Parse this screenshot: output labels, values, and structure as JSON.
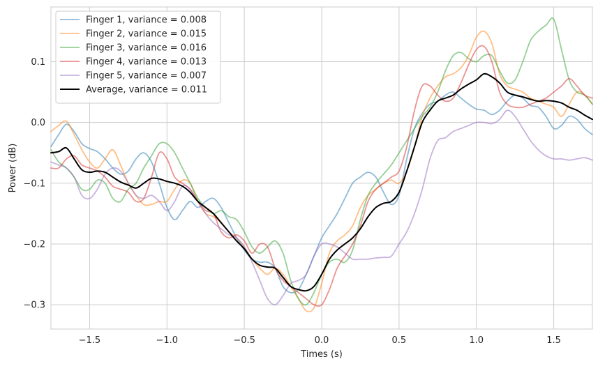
{
  "chart_data": {
    "type": "line",
    "xlabel": "Times (s)",
    "ylabel": "Power (dB)",
    "xlim": [
      -1.75,
      1.75
    ],
    "ylim": [
      -0.34,
      0.19
    ],
    "xticks": [
      -1.5,
      -1.0,
      -0.5,
      0.0,
      0.5,
      1.0,
      1.5
    ],
    "xtick_labels": [
      "−1.5",
      "−1.0",
      "−0.5",
      "0.0",
      "0.5",
      "1.0",
      "1.5"
    ],
    "yticks": [
      -0.3,
      -0.2,
      -0.1,
      0.0,
      0.1
    ],
    "ytick_labels": [
      "−0.3",
      "−0.2",
      "−0.1",
      "0.0",
      "0.1"
    ],
    "grid": true,
    "legend_position": "top-left",
    "series": [
      {
        "name": "Finger 1, variance = 0.008",
        "color": "#1f77b4",
        "opacity": 0.5,
        "width": 1.8,
        "x": [
          -1.75,
          -1.7,
          -1.65,
          -1.6,
          -1.55,
          -1.5,
          -1.45,
          -1.4,
          -1.35,
          -1.3,
          -1.25,
          -1.2,
          -1.15,
          -1.1,
          -1.05,
          -1.0,
          -0.95,
          -0.9,
          -0.85,
          -0.8,
          -0.75,
          -0.7,
          -0.65,
          -0.6,
          -0.55,
          -0.5,
          -0.45,
          -0.4,
          -0.35,
          -0.3,
          -0.25,
          -0.2,
          -0.15,
          -0.1,
          -0.05,
          0.0,
          0.05,
          0.1,
          0.15,
          0.2,
          0.25,
          0.3,
          0.35,
          0.4,
          0.45,
          0.5,
          0.55,
          0.6,
          0.65,
          0.7,
          0.75,
          0.8,
          0.85,
          0.9,
          0.95,
          1.0,
          1.05,
          1.1,
          1.15,
          1.2,
          1.25,
          1.3,
          1.35,
          1.4,
          1.45,
          1.5,
          1.55,
          1.6,
          1.65,
          1.7,
          1.75
        ],
        "y": [
          -0.04,
          -0.02,
          -0.003,
          -0.015,
          -0.035,
          -0.043,
          -0.048,
          -0.06,
          -0.075,
          -0.085,
          -0.08,
          -0.06,
          -0.05,
          -0.065,
          -0.1,
          -0.14,
          -0.16,
          -0.145,
          -0.13,
          -0.14,
          -0.13,
          -0.125,
          -0.14,
          -0.165,
          -0.19,
          -0.21,
          -0.225,
          -0.23,
          -0.23,
          -0.24,
          -0.27,
          -0.28,
          -0.275,
          -0.25,
          -0.22,
          -0.19,
          -0.17,
          -0.15,
          -0.125,
          -0.1,
          -0.09,
          -0.082,
          -0.09,
          -0.115,
          -0.135,
          -0.12,
          -0.06,
          -0.01,
          0.015,
          0.03,
          0.035,
          0.045,
          0.05,
          0.04,
          0.03,
          0.022,
          0.02,
          0.013,
          0.02,
          0.035,
          0.045,
          0.04,
          0.028,
          0.025,
          0.01,
          -0.01,
          -0.005,
          0.01,
          0.005,
          -0.01,
          -0.02
        ]
      },
      {
        "name": "Finger 2, variance = 0.015",
        "color": "#ff7f0e",
        "opacity": 0.5,
        "width": 1.8,
        "x": [
          -1.75,
          -1.7,
          -1.65,
          -1.6,
          -1.55,
          -1.5,
          -1.45,
          -1.4,
          -1.35,
          -1.3,
          -1.25,
          -1.2,
          -1.15,
          -1.1,
          -1.05,
          -1.0,
          -0.95,
          -0.9,
          -0.85,
          -0.8,
          -0.75,
          -0.7,
          -0.65,
          -0.6,
          -0.55,
          -0.5,
          -0.45,
          -0.4,
          -0.35,
          -0.3,
          -0.25,
          -0.2,
          -0.15,
          -0.1,
          -0.05,
          0.0,
          0.05,
          0.1,
          0.15,
          0.2,
          0.25,
          0.3,
          0.35,
          0.4,
          0.45,
          0.5,
          0.55,
          0.6,
          0.65,
          0.7,
          0.75,
          0.8,
          0.85,
          0.9,
          0.95,
          1.0,
          1.05,
          1.1,
          1.15,
          1.2,
          1.25,
          1.3,
          1.35,
          1.4,
          1.45,
          1.5,
          1.55,
          1.6,
          1.65,
          1.7,
          1.75
        ],
        "y": [
          -0.015,
          -0.005,
          0.002,
          -0.02,
          -0.045,
          -0.065,
          -0.075,
          -0.06,
          -0.045,
          -0.07,
          -0.1,
          -0.12,
          -0.135,
          -0.135,
          -0.13,
          -0.13,
          -0.11,
          -0.095,
          -0.1,
          -0.13,
          -0.15,
          -0.155,
          -0.165,
          -0.18,
          -0.19,
          -0.205,
          -0.225,
          -0.24,
          -0.25,
          -0.24,
          -0.25,
          -0.27,
          -0.29,
          -0.31,
          -0.305,
          -0.265,
          -0.215,
          -0.195,
          -0.185,
          -0.17,
          -0.14,
          -0.12,
          -0.11,
          -0.1,
          -0.095,
          -0.1,
          -0.08,
          -0.04,
          0.01,
          0.04,
          0.06,
          0.075,
          0.08,
          0.09,
          0.11,
          0.14,
          0.15,
          0.13,
          0.08,
          0.06,
          0.055,
          0.05,
          0.04,
          0.035,
          0.03,
          0.025,
          0.01,
          0.03,
          0.05,
          0.045,
          0.03
        ]
      },
      {
        "name": "Finger 3, variance = 0.016",
        "color": "#2ca02c",
        "opacity": 0.5,
        "width": 1.8,
        "x": [
          -1.75,
          -1.7,
          -1.65,
          -1.6,
          -1.55,
          -1.5,
          -1.45,
          -1.4,
          -1.35,
          -1.3,
          -1.25,
          -1.2,
          -1.15,
          -1.1,
          -1.05,
          -1.0,
          -0.95,
          -0.9,
          -0.85,
          -0.8,
          -0.75,
          -0.7,
          -0.65,
          -0.6,
          -0.55,
          -0.5,
          -0.45,
          -0.4,
          -0.35,
          -0.3,
          -0.25,
          -0.2,
          -0.15,
          -0.1,
          -0.05,
          0.0,
          0.05,
          0.1,
          0.15,
          0.2,
          0.25,
          0.3,
          0.35,
          0.4,
          0.45,
          0.5,
          0.55,
          0.6,
          0.65,
          0.7,
          0.75,
          0.8,
          0.85,
          0.9,
          0.95,
          1.0,
          1.05,
          1.1,
          1.15,
          1.2,
          1.25,
          1.3,
          1.35,
          1.4,
          1.45,
          1.5,
          1.55,
          1.6,
          1.65,
          1.7,
          1.75
        ],
        "y": [
          -0.045,
          -0.065,
          -0.075,
          -0.09,
          -0.11,
          -0.11,
          -0.095,
          -0.1,
          -0.125,
          -0.13,
          -0.11,
          -0.1,
          -0.075,
          -0.055,
          -0.035,
          -0.035,
          -0.05,
          -0.075,
          -0.1,
          -0.125,
          -0.14,
          -0.15,
          -0.145,
          -0.155,
          -0.16,
          -0.18,
          -0.205,
          -0.215,
          -0.205,
          -0.195,
          -0.215,
          -0.26,
          -0.29,
          -0.3,
          -0.28,
          -0.25,
          -0.23,
          -0.225,
          -0.23,
          -0.21,
          -0.16,
          -0.12,
          -0.1,
          -0.085,
          -0.07,
          -0.05,
          -0.03,
          -0.01,
          0.01,
          0.025,
          0.05,
          0.085,
          0.11,
          0.115,
          0.105,
          0.1,
          0.11,
          0.11,
          0.085,
          0.065,
          0.07,
          0.1,
          0.135,
          0.15,
          0.16,
          0.17,
          0.12,
          0.07,
          0.05,
          0.045,
          0.03
        ]
      },
      {
        "name": "Finger 4, variance = 0.013",
        "color": "#d62728",
        "opacity": 0.5,
        "width": 1.8,
        "x": [
          -1.75,
          -1.7,
          -1.65,
          -1.6,
          -1.55,
          -1.5,
          -1.45,
          -1.4,
          -1.35,
          -1.3,
          -1.25,
          -1.2,
          -1.15,
          -1.1,
          -1.05,
          -1.0,
          -0.95,
          -0.9,
          -0.85,
          -0.8,
          -0.75,
          -0.7,
          -0.65,
          -0.6,
          -0.55,
          -0.5,
          -0.45,
          -0.4,
          -0.35,
          -0.3,
          -0.25,
          -0.2,
          -0.15,
          -0.1,
          -0.05,
          0.0,
          0.05,
          0.1,
          0.15,
          0.2,
          0.25,
          0.3,
          0.35,
          0.4,
          0.45,
          0.5,
          0.55,
          0.6,
          0.65,
          0.7,
          0.75,
          0.8,
          0.85,
          0.9,
          0.95,
          1.0,
          1.05,
          1.1,
          1.15,
          1.2,
          1.25,
          1.3,
          1.35,
          1.4,
          1.45,
          1.5,
          1.55,
          1.6,
          1.65,
          1.7,
          1.75
        ],
        "y": [
          -0.075,
          -0.075,
          -0.06,
          -0.055,
          -0.07,
          -0.075,
          -0.08,
          -0.09,
          -0.105,
          -0.11,
          -0.115,
          -0.13,
          -0.125,
          -0.09,
          -0.05,
          -0.06,
          -0.09,
          -0.1,
          -0.11,
          -0.13,
          -0.145,
          -0.15,
          -0.18,
          -0.19,
          -0.185,
          -0.195,
          -0.215,
          -0.2,
          -0.205,
          -0.24,
          -0.26,
          -0.27,
          -0.28,
          -0.29,
          -0.3,
          -0.3,
          -0.275,
          -0.24,
          -0.22,
          -0.2,
          -0.17,
          -0.13,
          -0.11,
          -0.1,
          -0.09,
          -0.08,
          -0.04,
          0.02,
          0.06,
          0.06,
          0.045,
          0.035,
          0.04,
          0.065,
          0.095,
          0.12,
          0.125,
          0.1,
          0.05,
          0.03,
          0.025,
          0.025,
          0.03,
          0.035,
          0.04,
          0.05,
          0.06,
          0.072,
          0.06,
          0.045,
          0.04
        ]
      },
      {
        "name": "Finger 5, variance = 0.007",
        "color": "#9467bd",
        "opacity": 0.5,
        "width": 1.8,
        "x": [
          -1.75,
          -1.7,
          -1.65,
          -1.6,
          -1.55,
          -1.5,
          -1.45,
          -1.4,
          -1.35,
          -1.3,
          -1.25,
          -1.2,
          -1.15,
          -1.1,
          -1.05,
          -1.0,
          -0.95,
          -0.9,
          -0.85,
          -0.8,
          -0.75,
          -0.7,
          -0.65,
          -0.6,
          -0.55,
          -0.5,
          -0.45,
          -0.4,
          -0.35,
          -0.3,
          -0.25,
          -0.2,
          -0.15,
          -0.1,
          -0.05,
          0.0,
          0.05,
          0.1,
          0.15,
          0.2,
          0.25,
          0.3,
          0.35,
          0.4,
          0.45,
          0.5,
          0.55,
          0.6,
          0.65,
          0.7,
          0.75,
          0.8,
          0.85,
          0.9,
          0.95,
          1.0,
          1.05,
          1.1,
          1.15,
          1.2,
          1.25,
          1.3,
          1.35,
          1.4,
          1.45,
          1.5,
          1.55,
          1.6,
          1.65,
          1.7,
          1.75
        ],
        "y": [
          -0.065,
          -0.07,
          -0.075,
          -0.09,
          -0.12,
          -0.125,
          -0.11,
          -0.085,
          -0.075,
          -0.08,
          -0.1,
          -0.12,
          -0.125,
          -0.12,
          -0.13,
          -0.145,
          -0.13,
          -0.105,
          -0.11,
          -0.13,
          -0.15,
          -0.165,
          -0.175,
          -0.185,
          -0.19,
          -0.205,
          -0.23,
          -0.26,
          -0.29,
          -0.3,
          -0.285,
          -0.265,
          -0.26,
          -0.25,
          -0.22,
          -0.2,
          -0.2,
          -0.205,
          -0.215,
          -0.225,
          -0.225,
          -0.225,
          -0.223,
          -0.222,
          -0.22,
          -0.2,
          -0.18,
          -0.15,
          -0.11,
          -0.06,
          -0.03,
          -0.025,
          -0.015,
          -0.01,
          -0.005,
          0.0,
          0.0,
          -0.002,
          0.005,
          0.02,
          0.01,
          -0.01,
          -0.03,
          -0.045,
          -0.055,
          -0.06,
          -0.06,
          -0.062,
          -0.06,
          -0.058,
          -0.062
        ]
      },
      {
        "name": "Average, variance = 0.011",
        "color": "#000000",
        "opacity": 1.0,
        "width": 2.0,
        "x": [
          -1.75,
          -1.7,
          -1.65,
          -1.6,
          -1.55,
          -1.5,
          -1.45,
          -1.4,
          -1.35,
          -1.3,
          -1.25,
          -1.2,
          -1.15,
          -1.1,
          -1.05,
          -1.0,
          -0.95,
          -0.9,
          -0.85,
          -0.8,
          -0.75,
          -0.7,
          -0.65,
          -0.6,
          -0.55,
          -0.5,
          -0.45,
          -0.4,
          -0.35,
          -0.3,
          -0.25,
          -0.2,
          -0.15,
          -0.1,
          -0.05,
          0.0,
          0.05,
          0.1,
          0.15,
          0.2,
          0.25,
          0.3,
          0.35,
          0.4,
          0.45,
          0.5,
          0.55,
          0.6,
          0.65,
          0.7,
          0.75,
          0.8,
          0.85,
          0.9,
          0.95,
          1.0,
          1.05,
          1.1,
          1.15,
          1.2,
          1.25,
          1.3,
          1.35,
          1.4,
          1.45,
          1.5,
          1.55,
          1.6,
          1.65,
          1.7,
          1.75
        ],
        "y": [
          -0.05,
          -0.048,
          -0.042,
          -0.06,
          -0.078,
          -0.082,
          -0.08,
          -0.082,
          -0.09,
          -0.098,
          -0.103,
          -0.108,
          -0.1,
          -0.092,
          -0.093,
          -0.097,
          -0.1,
          -0.105,
          -0.115,
          -0.13,
          -0.14,
          -0.15,
          -0.165,
          -0.18,
          -0.195,
          -0.208,
          -0.225,
          -0.235,
          -0.238,
          -0.24,
          -0.255,
          -0.27,
          -0.275,
          -0.277,
          -0.27,
          -0.25,
          -0.225,
          -0.21,
          -0.2,
          -0.19,
          -0.175,
          -0.155,
          -0.14,
          -0.133,
          -0.13,
          -0.115,
          -0.08,
          -0.04,
          0.0,
          0.02,
          0.035,
          0.04,
          0.045,
          0.055,
          0.063,
          0.07,
          0.08,
          0.075,
          0.065,
          0.05,
          0.045,
          0.042,
          0.038,
          0.035,
          0.036,
          0.035,
          0.032,
          0.025,
          0.02,
          0.012,
          0.005
        ]
      }
    ]
  }
}
